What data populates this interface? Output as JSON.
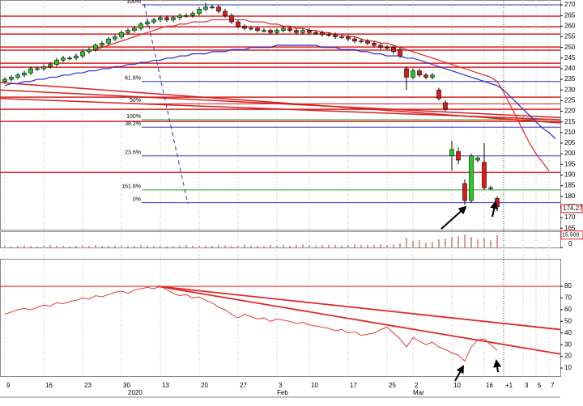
{
  "chart_data": {
    "type": "candlestick",
    "categories": [
      "9",
      null,
      null,
      null,
      null,
      null,
      "16",
      null,
      null,
      null,
      null,
      null,
      "23",
      null,
      null,
      null,
      null,
      null,
      "30",
      null,
      null,
      null,
      null,
      null,
      "13",
      null,
      null,
      null,
      null,
      null,
      "20",
      null,
      null,
      null,
      null,
      null,
      "27",
      null,
      null,
      null,
      null,
      null,
      "3",
      null,
      null,
      null,
      null,
      "10",
      null,
      null,
      null,
      null,
      null,
      "17",
      null,
      null,
      null,
      null,
      null,
      "25",
      null,
      null,
      null,
      "2",
      null,
      null,
      null,
      null,
      null,
      "10",
      null,
      null,
      null,
      null,
      "16",
      null,
      null,
      "+1",
      null,
      null,
      "3",
      null,
      "5",
      null,
      "7",
      null
    ],
    "month_labels": [
      null,
      null,
      null,
      null,
      null,
      null,
      null,
      null,
      null,
      null,
      null,
      null,
      null,
      null,
      null,
      null,
      null,
      null,
      null,
      "2020",
      null,
      null,
      null,
      null,
      null,
      null,
      null,
      null,
      null,
      null,
      null,
      null,
      null,
      null,
      null,
      null,
      null,
      null,
      null,
      null,
      null,
      null,
      "Feb",
      null,
      null,
      null,
      null,
      null,
      null,
      null,
      null,
      null,
      null,
      null,
      null,
      null,
      null,
      null,
      null,
      null,
      null,
      null,
      null,
      "Mar",
      null,
      null,
      null,
      null,
      null,
      null,
      null,
      null,
      null,
      null,
      null,
      null,
      null,
      null,
      null,
      null,
      null,
      null,
      null,
      null,
      null,
      null
    ],
    "open": [
      234,
      235,
      236,
      237,
      238,
      240,
      240,
      241,
      242,
      244,
      245,
      245,
      246,
      248,
      249,
      251,
      252,
      254,
      255,
      257,
      258,
      259,
      261,
      262,
      263,
      264,
      263,
      264,
      265,
      265,
      266,
      268,
      269,
      269,
      267,
      265,
      262,
      260,
      259,
      259,
      258,
      258,
      257,
      258,
      259,
      258,
      257,
      258,
      257,
      257,
      256,
      256,
      255,
      255,
      254,
      253,
      253,
      252,
      251,
      250,
      250,
      249,
      240,
      236,
      239,
      237,
      236,
      230,
      224,
      199,
      201,
      186,
      178,
      197,
      196,
      184,
      179,
      null,
      null,
      null,
      null,
      null,
      null,
      null,
      null,
      null
    ],
    "high": [
      236,
      237,
      238,
      239,
      241,
      241,
      242,
      243,
      245,
      246,
      246,
      247,
      249,
      250,
      252,
      253,
      255,
      256,
      258,
      259,
      260,
      262,
      263,
      264,
      265,
      265,
      265,
      266,
      266,
      267,
      269,
      271,
      270,
      270,
      268,
      266,
      263,
      261,
      260,
      260,
      259,
      259,
      259,
      260,
      260,
      259,
      259,
      259,
      258,
      258,
      257,
      257,
      256,
      256,
      255,
      254,
      254,
      253,
      252,
      251,
      251,
      250,
      241,
      240,
      240,
      238,
      238,
      231,
      225,
      206,
      203,
      188,
      200,
      199,
      205,
      185,
      180,
      null,
      null,
      null,
      null,
      null,
      null,
      null,
      null,
      null
    ],
    "low": [
      233,
      234,
      235,
      236,
      237,
      239,
      239,
      240,
      241,
      243,
      244,
      244,
      245,
      247,
      248,
      250,
      251,
      253,
      254,
      256,
      257,
      258,
      260,
      261,
      262,
      262,
      262,
      263,
      264,
      264,
      265,
      267,
      268,
      266,
      264,
      261,
      259,
      258,
      258,
      257,
      257,
      256,
      256,
      257,
      257,
      256,
      256,
      256,
      256,
      255,
      255,
      254,
      254,
      253,
      252,
      252,
      251,
      250,
      249,
      249,
      247,
      245,
      230,
      235,
      236,
      235,
      235,
      225,
      220,
      192,
      195,
      176,
      177,
      196,
      183,
      183,
      173,
      null,
      null,
      null,
      null,
      null,
      null,
      null,
      null,
      null
    ],
    "close": [
      235,
      236,
      237,
      238,
      240,
      240,
      241,
      242,
      244,
      245,
      245,
      246,
      248,
      249,
      251,
      252,
      254,
      255,
      257,
      258,
      259,
      261,
      262,
      263,
      264,
      263,
      264,
      265,
      265,
      266,
      268,
      269,
      269,
      267,
      265,
      262,
      260,
      259,
      259,
      258,
      258,
      257,
      258,
      259,
      258,
      257,
      258,
      257,
      257,
      256,
      256,
      255,
      255,
      254,
      253,
      253,
      252,
      251,
      250,
      250,
      248,
      246,
      236,
      239,
      237,
      236,
      237,
      226,
      221,
      202,
      197,
      178,
      199,
      198,
      184,
      184,
      175,
      null,
      null,
      null,
      null,
      null,
      null,
      null,
      null,
      null
    ],
    "ylim": [
      164.3,
      272.3
    ],
    "yticks": [
      165,
      170,
      175,
      180,
      185,
      190,
      195,
      200,
      205,
      210,
      215,
      220,
      225,
      230,
      235,
      240,
      245,
      250,
      255,
      260,
      265,
      270
    ],
    "last_price": 174.27,
    "moving_averages": [
      {
        "color": "#2828d8",
        "values": [
          232,
          233,
          233,
          234,
          234,
          235,
          235,
          236,
          236,
          237,
          237,
          238,
          238,
          239,
          239,
          240,
          240,
          241,
          241,
          242,
          242,
          243,
          243,
          244,
          244,
          245,
          245,
          246,
          246,
          247,
          247,
          247,
          248,
          248,
          248,
          249,
          249,
          249,
          250,
          250,
          250,
          250,
          251,
          251,
          251,
          251,
          251,
          251,
          251,
          250,
          250,
          250,
          249,
          249,
          249,
          248,
          248,
          247,
          247,
          246,
          246,
          246,
          245,
          245,
          244,
          243,
          242,
          241,
          240,
          239,
          238,
          237,
          236,
          235,
          234,
          233,
          232,
          230,
          227,
          224,
          221,
          218,
          215,
          212,
          210,
          207
        ]
      },
      {
        "color": "#e02828",
        "values": [
          null,
          null,
          null,
          null,
          null,
          null,
          null,
          null,
          null,
          null,
          null,
          null,
          null,
          null,
          249,
          250,
          251,
          252,
          253,
          254,
          255,
          256,
          257,
          258,
          259,
          260,
          260,
          261,
          261,
          262,
          262,
          262,
          263,
          263,
          263,
          263,
          263,
          263,
          262,
          262,
          262,
          261,
          261,
          260,
          260,
          259,
          259,
          258,
          258,
          257,
          257,
          256,
          256,
          255,
          255,
          254,
          253,
          253,
          252,
          252,
          251,
          250,
          249,
          248,
          247,
          246,
          245,
          244,
          243,
          242,
          241,
          240,
          239,
          238,
          237,
          236,
          234,
          229,
          223,
          217,
          211,
          205,
          200,
          196,
          192,
          null
        ]
      }
    ],
    "levels": [
      {
        "value": 270,
        "label": "100%",
        "color": "#3030c0"
      },
      {
        "value": 234,
        "label": "61.8%",
        "color": "#3030c0"
      },
      {
        "value": 223.5,
        "label": "50%",
        "color": "#d02020"
      },
      {
        "value": 216,
        "label": "100%",
        "color": "#20a020"
      },
      {
        "value": 212.5,
        "label": "38.2%",
        "color": "#3030c0"
      },
      {
        "value": 199,
        "label": "23.6%",
        "color": "#3030c0"
      },
      {
        "value": 183,
        "label": "161.8%",
        "color": "#20a020"
      },
      {
        "value": 177,
        "label": "0%",
        "color": "#3030c0"
      }
    ],
    "lines": [
      264.7,
      259.7,
      256.3,
      250.2,
      248.7,
      242.6,
      240.7,
      226.6,
      220.9,
      215.2,
      191.2
    ],
    "line_color": "#d82020",
    "trendlines": [
      {
        "start": 233.5,
        "end": 214.5
      },
      {
        "start": 230,
        "end": 217
      },
      {
        "start": 226,
        "end": 216
      }
    ],
    "volume": {
      "values": [
        2,
        1.5,
        2,
        2.5,
        2,
        1.5,
        2,
        3,
        2,
        2,
        1.5,
        2,
        2.5,
        2,
        3,
        2,
        2,
        2.5,
        2,
        1.5,
        2,
        3,
        2.5,
        2,
        2,
        1.5,
        2,
        2.5,
        3,
        2,
        2,
        2.5,
        2,
        3,
        2.5,
        2,
        2,
        3,
        2.5,
        2,
        2,
        3,
        2.5,
        3,
        2,
        3,
        4,
        3,
        2.5,
        3,
        3.5,
        3,
        2.5,
        3,
        4,
        3,
        3.5,
        3,
        4,
        3,
        4,
        5,
        12,
        8,
        9,
        6,
        7,
        10,
        11,
        13,
        14,
        16,
        13,
        10,
        12,
        9,
        15.5,
        null,
        null,
        null,
        null,
        null,
        null,
        null,
        null,
        null
      ],
      "color": "#c03030",
      "ylim": [
        0,
        20
      ],
      "yticks": [
        0
      ],
      "last": {
        "value": 15.5,
        "label": "15.500"
      }
    },
    "rsi": {
      "values": [
        56,
        58,
        60,
        61,
        60,
        62,
        64,
        63,
        66,
        65,
        67,
        68,
        70,
        69,
        72,
        71,
        73,
        75,
        76,
        74,
        77,
        78,
        79,
        78,
        80,
        77,
        74,
        72,
        73,
        70,
        71,
        68,
        66,
        62,
        60,
        56,
        53,
        56,
        54,
        52,
        53,
        50,
        52,
        51,
        50,
        48,
        49,
        47,
        46,
        45,
        44,
        42,
        43,
        40,
        41,
        38,
        39,
        40,
        43,
        45,
        40,
        35,
        28,
        36,
        33,
        30,
        32,
        28,
        26,
        23,
        21,
        16,
        28,
        34,
        35,
        30,
        25,
        null,
        null,
        null,
        null,
        null,
        null,
        null,
        null,
        null
      ],
      "color": "#e02828",
      "ylim": [
        3.1,
        103.6
      ],
      "yticks": [
        10,
        20,
        30,
        40,
        50,
        60,
        70,
        80
      ],
      "level": 80,
      "trendlines": [
        {
          "start": 80,
          "end": 43
        },
        {
          "start": 80,
          "end": 22
        }
      ]
    }
  }
}
